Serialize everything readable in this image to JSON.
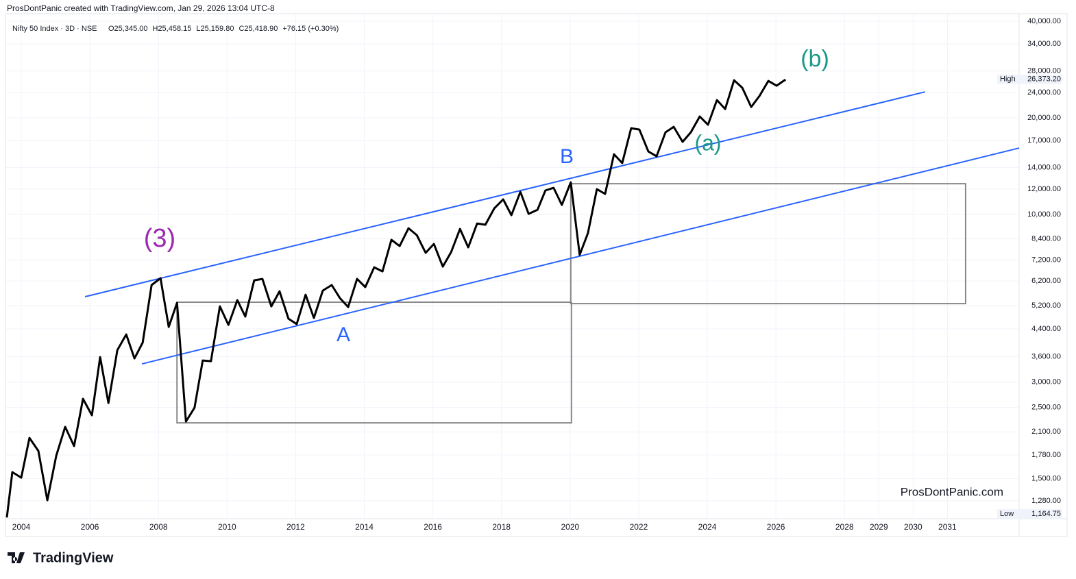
{
  "header": "ProsDontPanic created with TradingView.com, Jan 29, 2026 13:04 UTC-8",
  "footer_logo": "TradingView",
  "chart_data": {
    "type": "line",
    "yscale": "log",
    "grid": true,
    "legend_stats": [
      "O25,345.00",
      "H25,458.15",
      "L25,159.80",
      "C25,418.90",
      "+76.15 (+0.30%)"
    ],
    "watermark": "ProsDontPanic.com",
    "x": [
      2003.58,
      2003.74,
      2004.0,
      2004.24,
      2004.5,
      2004.76,
      2005.02,
      2005.28,
      2005.54,
      2005.8,
      2006.06,
      2006.3,
      2006.54,
      2006.8,
      2007.06,
      2007.3,
      2007.54,
      2007.8,
      2008.06,
      2008.3,
      2008.54,
      2008.8,
      2009.05,
      2009.29,
      2009.53,
      2009.79,
      2010.04,
      2010.3,
      2010.53,
      2010.79,
      2011.03,
      2011.29,
      2011.53,
      2011.79,
      2012.03,
      2012.29,
      2012.53,
      2012.79,
      2013.05,
      2013.29,
      2013.53,
      2013.79,
      2014.03,
      2014.29,
      2014.53,
      2014.79,
      2015.03,
      2015.29,
      2015.53,
      2015.79,
      2016.03,
      2016.29,
      2016.53,
      2016.79,
      2017.03,
      2017.29,
      2017.53,
      2017.79,
      2018.05,
      2018.29,
      2018.55,
      2018.79,
      2019.05,
      2019.28,
      2019.52,
      2019.76,
      2020.02,
      2020.28,
      2020.52,
      2020.78,
      2021.02,
      2021.28,
      2021.52,
      2021.78,
      2022.02,
      2022.28,
      2022.52,
      2022.78,
      2023.02,
      2023.28,
      2023.52,
      2023.78,
      2024.02,
      2024.28,
      2024.52,
      2024.78,
      2025.02,
      2025.28,
      2025.52,
      2025.78,
      2026.02,
      2026.28
    ],
    "series": [
      {
        "name": "Nifty 50 Index · 3D · NSE",
        "color": "#000000",
        "values": [
          1136,
          1573,
          1512,
          2011,
          1831,
          1285,
          1770,
          2176,
          1896,
          2662,
          2365,
          3593,
          2584,
          3775,
          4226,
          3558,
          3985,
          6022,
          6326,
          4460,
          5300,
          2262,
          2497,
          3505,
          3487,
          5169,
          4527,
          5405,
          4803,
          6232,
          6294,
          5169,
          5761,
          4732,
          4550,
          5621,
          4756,
          5789,
          6022,
          5484,
          5144,
          6294,
          5934,
          6842,
          6643,
          8332,
          7969,
          9057,
          8622,
          7589,
          8089,
          6877,
          7626,
          9012,
          7893,
          9374,
          9284,
          10445,
          11136,
          9945,
          11755,
          10041,
          10342,
          11873,
          12106,
          10705,
          12592,
          7477,
          8750,
          11988,
          11583,
          15402,
          14453,
          18568,
          18386,
          15707,
          15174,
          18030,
          18753,
          16833,
          18030,
          20192,
          19031,
          22720,
          21310,
          26196,
          24818,
          21627,
          23395,
          26070,
          25188,
          26330
        ]
      }
    ],
    "xlim": [
      2003.54,
      2033.09
    ],
    "xticks": [
      2004,
      2006,
      2008,
      2010,
      2012,
      2014,
      2016,
      2018,
      2020,
      2022,
      2024,
      2026,
      2028,
      2029,
      2030,
      2031
    ],
    "ylim": [
      1126,
      42230
    ],
    "yticks": [
      {
        "value": 40000,
        "label": "40,000.00"
      },
      {
        "value": 34000,
        "label": "34,000.00"
      },
      {
        "value": 28000,
        "label": "28,000.00"
      },
      {
        "value": 24000,
        "label": "24,000.00"
      },
      {
        "value": 20000,
        "label": "20,000.00"
      },
      {
        "value": 17000,
        "label": "17,000.00"
      },
      {
        "value": 14000,
        "label": "14,000.00"
      },
      {
        "value": 12000,
        "label": "12,000.00"
      },
      {
        "value": 10000,
        "label": "10,000.00"
      },
      {
        "value": 8400,
        "label": "8,400.00"
      },
      {
        "value": 7200,
        "label": "7,200.00"
      },
      {
        "value": 6200,
        "label": "6,200.00"
      },
      {
        "value": 5200,
        "label": "5,200.00"
      },
      {
        "value": 4400,
        "label": "4,400.00"
      },
      {
        "value": 3600,
        "label": "3,600.00"
      },
      {
        "value": 3000,
        "label": "3,000.00"
      },
      {
        "value": 2500,
        "label": "2,500.00"
      },
      {
        "value": 2100,
        "label": "2,100.00"
      },
      {
        "value": 1780,
        "label": "1,780.00"
      },
      {
        "value": 1500,
        "label": "1,500.00"
      },
      {
        "value": 1280,
        "label": "1,280.00"
      }
    ],
    "price_marks": [
      {
        "name": "High",
        "value": 26373.2,
        "label": "26,373.20"
      },
      {
        "name": "Low",
        "value": 1164.75,
        "label": "1,164.75"
      }
    ],
    "trendlines": [
      {
        "color": "#2962ff",
        "x": [
          2005.86,
          2030.35
        ],
        "y": [
          5540,
          24100
        ]
      },
      {
        "color": "#2962ff",
        "x": [
          2007.52,
          2033.09
        ],
        "y": [
          3421,
          16100
        ]
      }
    ],
    "boxes": [
      {
        "color": "#888888",
        "x": [
          2008.54,
          2020.04
        ],
        "y": [
          2240,
          5326
        ]
      },
      {
        "color": "#888888",
        "x": [
          2020.02,
          2031.53
        ],
        "y": [
          5272,
          12465
        ]
      }
    ],
    "annotations": [
      {
        "text": "(3)",
        "color": "#9c27b0"
      },
      {
        "text": "A",
        "color": "#2962ff"
      },
      {
        "text": "B",
        "color": "#2962ff"
      },
      {
        "text": "(a)",
        "color": "#1a9988"
      },
      {
        "text": "(b)",
        "color": "#1a9988"
      }
    ]
  }
}
